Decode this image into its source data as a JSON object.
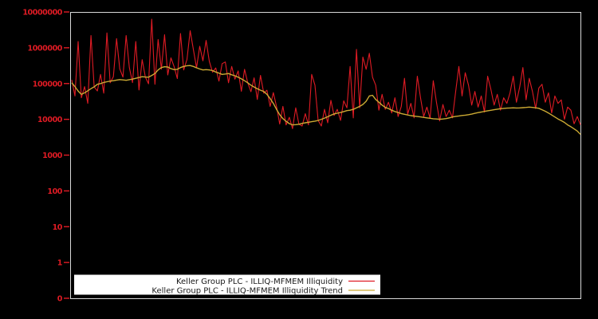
{
  "chart_data": {
    "type": "line",
    "title": "",
    "xlabel": "",
    "ylabel": "",
    "yscale": "log",
    "ylim": [
      0.1,
      10000000
    ],
    "grid": false,
    "legend_position": "bottom-left-inside",
    "y_tick_labels": [
      "10000000",
      "1000000",
      "100000",
      "10000",
      "1000",
      "100",
      "10",
      "1",
      "0"
    ],
    "x_tick_labels": [],
    "colors": {
      "background": "#000000",
      "plot_border": "#d9d9d9",
      "tick_label": "#df1b24",
      "tick_mark": "#df1b24",
      "legend_background": "#ffffff",
      "legend_text": "#1a1a1a"
    },
    "series": [
      {
        "name": "Keller Group PLC - ILLIQ-MFMEM Illiquidity",
        "color": "#df1b24",
        "values": [
          126000,
          45000,
          1500000,
          40000,
          82000,
          28000,
          2200000,
          81000,
          62000,
          180000,
          54000,
          2600000,
          105000,
          156000,
          1800000,
          258000,
          151000,
          2200000,
          282000,
          106000,
          1500000,
          66000,
          465000,
          152000,
          98000,
          6300000,
          95000,
          1700000,
          252000,
          2300000,
          174000,
          520000,
          294000,
          138000,
          2500000,
          240000,
          473000,
          3000000,
          900000,
          275000,
          1100000,
          432000,
          1600000,
          420000,
          207000,
          273000,
          117000,
          360000,
          400000,
          105000,
          300000,
          132000,
          225000,
          61000,
          250000,
          105000,
          59000,
          144000,
          36000,
          169000,
          54000,
          65000,
          23000,
          56000,
          23000,
          7400,
          23000,
          7000,
          11400,
          5500,
          21000,
          7300,
          6500,
          14400,
          7000,
          180000,
          90000,
          9300,
          6500,
          19000,
          8000,
          34000,
          12800,
          19000,
          9300,
          33000,
          21000,
          300000,
          11000,
          900000,
          21000,
          550000,
          250000,
          700000,
          150000,
          90000,
          18000,
          50000,
          19000,
          30000,
          15000,
          40000,
          12000,
          23000,
          140000,
          14000,
          28000,
          11000,
          160000,
          40000,
          12000,
          22000,
          10700,
          120000,
          30000,
          9000,
          26000,
          12000,
          18000,
          11000,
          60000,
          300000,
          45000,
          200000,
          90000,
          25000,
          60000,
          22000,
          45000,
          16000,
          160000,
          70000,
          25000,
          50000,
          18000,
          40000,
          28000,
          55000,
          160000,
          30000,
          80000,
          280000,
          35000,
          140000,
          60000,
          20000,
          75000,
          95000,
          30000,
          55000,
          15000,
          45000,
          28000,
          35000,
          10000,
          22000,
          18000,
          7500,
          12000,
          7000
        ]
      },
      {
        "name": "Keller Group PLC - ILLIQ-MFMEM Illiquidity Trend",
        "color": "#ccaa33",
        "values": [
          105000,
          82000,
          62000,
          50000,
          55000,
          63000,
          72000,
          81000,
          95000,
          100000,
          107000,
          112000,
          117000,
          120000,
          125000,
          129000,
          126000,
          123000,
          128000,
          133000,
          140000,
          147000,
          155000,
          152000,
          150000,
          168000,
          190000,
          240000,
          280000,
          295000,
          290000,
          260000,
          245000,
          250000,
          280000,
          300000,
          315000,
          318000,
          300000,
          275000,
          255000,
          240000,
          245000,
          240000,
          230000,
          210000,
          195000,
          180000,
          185000,
          190000,
          175000,
          165000,
          150000,
          135000,
          120000,
          105000,
          90000,
          80000,
          72000,
          65000,
          60000,
          50000,
          38000,
          28000,
          19000,
          13500,
          10500,
          8800,
          7600,
          7000,
          7100,
          7300,
          7700,
          8000,
          8300,
          8600,
          8900,
          9300,
          10000,
          10800,
          11800,
          13000,
          14200,
          14800,
          15500,
          16500,
          17500,
          18000,
          19000,
          21000,
          23000,
          26000,
          32000,
          45000,
          47000,
          36000,
          30000,
          25000,
          21500,
          20000,
          18000,
          16500,
          15500,
          14500,
          13800,
          13200,
          12700,
          12300,
          12000,
          11700,
          11300,
          11000,
          10700,
          10400,
          10200,
          10000,
          10200,
          10500,
          11000,
          11600,
          12100,
          12400,
          12800,
          13100,
          13500,
          14000,
          14700,
          15400,
          16000,
          16600,
          17300,
          17900,
          18500,
          19200,
          19800,
          20200,
          20500,
          20800,
          21000,
          20700,
          20900,
          21200,
          21500,
          22000,
          21500,
          21000,
          20300,
          18500,
          16800,
          15000,
          13200,
          11600,
          10200,
          9200,
          8200,
          7000,
          6200,
          5400,
          4700,
          3800
        ]
      }
    ]
  }
}
